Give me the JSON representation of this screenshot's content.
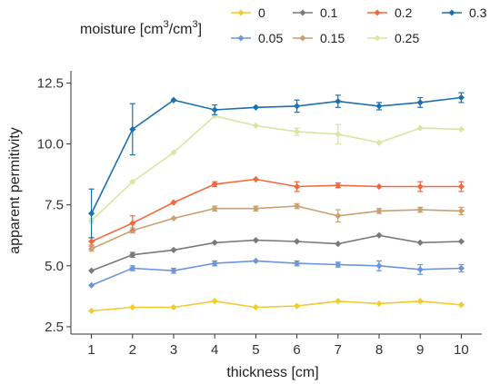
{
  "chart_data": {
    "type": "line",
    "xlabel": "thickness [cm]",
    "ylabel": "apparent permitivity",
    "x": [
      1,
      2,
      3,
      4,
      5,
      6,
      7,
      8,
      9,
      10
    ],
    "xlim": [
      0.5,
      10.5
    ],
    "ylim": [
      2.2,
      13.0
    ],
    "yticks": [
      2.5,
      5.0,
      7.5,
      10.0,
      12.5
    ],
    "ytick_labels": [
      "2.5",
      "5.0",
      "7.5",
      "10.0",
      "12.5"
    ],
    "xtick_labels": [
      "1",
      "2",
      "3",
      "4",
      "5",
      "6",
      "7",
      "8",
      "9",
      "10"
    ],
    "grid": false,
    "legend": {
      "title_prefix": "moisture [cm",
      "title_exp1": "3",
      "title_mid": "/cm",
      "title_exp2": "3",
      "title_suffix": "]",
      "placement": "top"
    },
    "series": [
      {
        "name": "0",
        "color": "#F2CC2C",
        "values": [
          3.15,
          3.3,
          3.3,
          3.55,
          3.3,
          3.35,
          3.55,
          3.45,
          3.55,
          3.4
        ],
        "errors": [
          0.05,
          0.05,
          0.05,
          0.05,
          0.05,
          0.05,
          0.05,
          0.05,
          0.05,
          0.05
        ]
      },
      {
        "name": "0.05",
        "color": "#6B96DC",
        "values": [
          4.2,
          4.9,
          4.8,
          5.1,
          5.2,
          5.1,
          5.05,
          5.0,
          4.85,
          4.9
        ],
        "errors": [
          0.05,
          0.1,
          0.1,
          0.1,
          0.05,
          0.1,
          0.1,
          0.2,
          0.2,
          0.15
        ]
      },
      {
        "name": "0.1",
        "color": "#7A7A7A",
        "values": [
          4.8,
          5.45,
          5.65,
          5.95,
          6.05,
          6.0,
          5.9,
          6.25,
          5.95,
          6.0
        ],
        "errors": [
          0.05,
          0.1,
          0.05,
          0.05,
          0.05,
          0.05,
          0.05,
          0.05,
          0.05,
          0.05
        ]
      },
      {
        "name": "0.15",
        "color": "#C9A070",
        "values": [
          5.7,
          6.45,
          6.95,
          7.35,
          7.35,
          7.45,
          7.05,
          7.25,
          7.3,
          7.25
        ],
        "errors": [
          0.1,
          0.1,
          0.05,
          0.1,
          0.1,
          0.1,
          0.25,
          0.1,
          0.1,
          0.15
        ]
      },
      {
        "name": "0.2",
        "color": "#F26A3D",
        "values": [
          6.0,
          6.75,
          7.6,
          8.35,
          8.55,
          8.25,
          8.3,
          8.25,
          8.25,
          8.25
        ],
        "errors": [
          0.15,
          0.3,
          0.05,
          0.1,
          0.05,
          0.2,
          0.1,
          0.05,
          0.2,
          0.2
        ]
      },
      {
        "name": "0.25",
        "color": "#D8E6A2",
        "values": [
          6.85,
          8.45,
          9.65,
          11.15,
          10.75,
          10.5,
          10.4,
          10.05,
          10.65,
          10.6
        ],
        "errors": [
          0.1,
          0.05,
          0.05,
          0.05,
          0.05,
          0.15,
          0.4,
          0.05,
          0.05,
          0.05
        ]
      },
      {
        "name": "0.3",
        "color": "#1E6FAD",
        "values": [
          7.15,
          10.6,
          11.8,
          11.4,
          11.5,
          11.55,
          11.75,
          11.55,
          11.7,
          11.9
        ],
        "errors": [
          1.0,
          1.05,
          0.05,
          0.2,
          0.05,
          0.25,
          0.25,
          0.15,
          0.2,
          0.2
        ]
      }
    ]
  }
}
